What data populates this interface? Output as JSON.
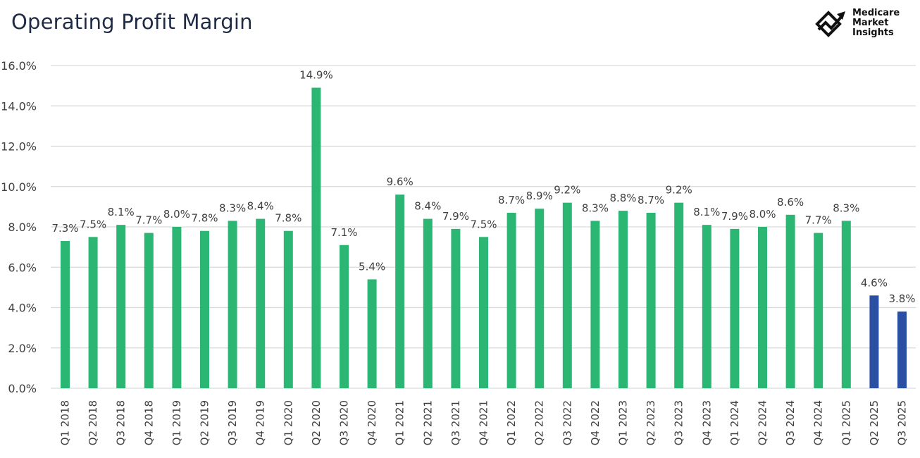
{
  "page": {
    "title": "Operating Profit Margin"
  },
  "logo": {
    "line1": "Medicare",
    "line2": "Market",
    "line3": "Insights"
  },
  "colors": {
    "primary_bar": "#2bb673",
    "highlight_bar": "#2b4fa3",
    "grid": "#d9d9d9",
    "text": "#404040"
  },
  "chart_data": {
    "type": "bar",
    "title": "Operating Profit Margin",
    "xlabel": "",
    "ylabel": "",
    "ylim": [
      0,
      16
    ],
    "yticks": [
      "0.0%",
      "2.0%",
      "4.0%",
      "6.0%",
      "8.0%",
      "10.0%",
      "12.0%",
      "14.0%",
      "16.0%"
    ],
    "ytick_values": [
      0,
      2,
      4,
      6,
      8,
      10,
      12,
      14,
      16
    ],
    "grid": true,
    "categories": [
      "Q1 2018",
      "Q2 2018",
      "Q3 2018",
      "Q4 2018",
      "Q1 2019",
      "Q2 2019",
      "Q3 2019",
      "Q4 2019",
      "Q1 2020",
      "Q2 2020",
      "Q3 2020",
      "Q4 2020",
      "Q1 2021",
      "Q2 2021",
      "Q3 2021",
      "Q4 2021",
      "Q1 2022",
      "Q2 2022",
      "Q3 2022",
      "Q4 2022",
      "Q1 2023",
      "Q2 2023",
      "Q3 2023",
      "Q4 2023",
      "Q1 2024",
      "Q2 2024",
      "Q3 2024",
      "Q4 2024",
      "Q1 2025",
      "Q2 2025",
      "Q3 2025"
    ],
    "values": [
      7.3,
      7.5,
      8.1,
      7.7,
      8.0,
      7.8,
      8.3,
      8.4,
      7.8,
      14.9,
      7.1,
      5.4,
      9.6,
      8.4,
      7.9,
      7.5,
      8.7,
      8.9,
      9.2,
      8.3,
      8.8,
      8.7,
      9.2,
      8.1,
      7.9,
      8.0,
      8.6,
      7.7,
      8.3,
      4.6,
      3.8
    ],
    "labels": [
      "7.3%",
      "7.5%",
      "8.1%",
      "7.7%",
      "8.0%",
      "7.8%",
      "8.3%",
      "8.4%",
      "7.8%",
      "14.9%",
      "7.1%",
      "5.4%",
      "9.6%",
      "8.4%",
      "7.9%",
      "7.5%",
      "8.7%",
      "8.9%",
      "9.2%",
      "8.3%",
      "8.8%",
      "8.7%",
      "9.2%",
      "8.1%",
      "7.9%",
      "8.0%",
      "8.6%",
      "7.7%",
      "8.3%",
      "4.6%",
      "3.8%"
    ],
    "highlight": [
      "Q2 2025",
      "Q3 2025"
    ]
  }
}
